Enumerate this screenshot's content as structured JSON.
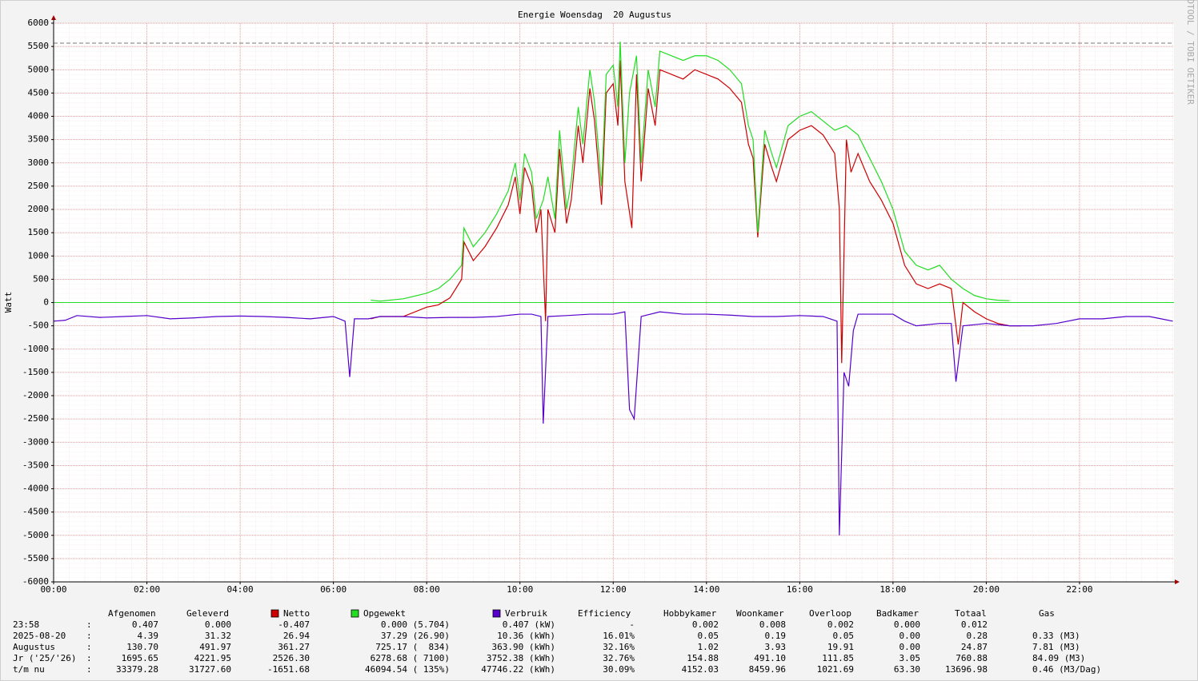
{
  "chart_data": {
    "type": "line",
    "title": "Energie Woensdag  20 Augustus",
    "y_label": "Watt",
    "watermark": "RRDTOOL / TOBI OETIKER",
    "xlim": [
      0,
      24
    ],
    "xticks": [
      {
        "value": 0,
        "label": "00:00"
      },
      {
        "value": 2,
        "label": "02:00"
      },
      {
        "value": 4,
        "label": "04:00"
      },
      {
        "value": 6,
        "label": "06:00"
      },
      {
        "value": 8,
        "label": "08:00"
      },
      {
        "value": 10,
        "label": "10:00"
      },
      {
        "value": 12,
        "label": "12:00"
      },
      {
        "value": 14,
        "label": "14:00"
      },
      {
        "value": 16,
        "label": "16:00"
      },
      {
        "value": 18,
        "label": "18:00"
      },
      {
        "value": 20,
        "label": "20:00"
      },
      {
        "value": 22,
        "label": "22:00"
      }
    ],
    "ylim": [
      -6000,
      6000
    ],
    "yticks": [
      -6000,
      -5500,
      -5000,
      -4500,
      -4000,
      -3500,
      -3000,
      -2500,
      -2000,
      -1500,
      -1000,
      -500,
      0,
      500,
      1000,
      1500,
      2000,
      2500,
      3000,
      3500,
      4000,
      4500,
      5000,
      5500,
      6000
    ],
    "grid": true,
    "max_line": 5570,
    "series": [
      {
        "name": "Netto",
        "color": "#cc0000",
        "x": [
          6.8,
          7.0,
          7.5,
          8.0,
          8.25,
          8.5,
          8.75,
          8.8,
          9.0,
          9.25,
          9.5,
          9.75,
          9.9,
          10.0,
          10.1,
          10.25,
          10.35,
          10.45,
          10.55,
          10.6,
          10.75,
          10.85,
          11.0,
          11.1,
          11.25,
          11.35,
          11.5,
          11.6,
          11.75,
          11.85,
          12.0,
          12.1,
          12.15,
          12.25,
          12.4,
          12.5,
          12.6,
          12.75,
          12.9,
          13.0,
          13.25,
          13.5,
          13.75,
          14.0,
          14.25,
          14.5,
          14.75,
          14.9,
          15.0,
          15.1,
          15.25,
          15.4,
          15.5,
          15.75,
          16.0,
          16.25,
          16.5,
          16.75,
          16.85,
          16.9,
          17.0,
          17.1,
          17.25,
          17.5,
          17.75,
          18.0,
          18.25,
          18.5,
          18.75,
          19.0,
          19.25,
          19.4,
          19.5,
          19.75,
          20.0,
          20.25,
          20.5,
          20.75
        ],
        "values": [
          -350,
          -300,
          -300,
          -100,
          -50,
          100,
          500,
          1300,
          900,
          1200,
          1600,
          2100,
          2700,
          1900,
          2900,
          2500,
          1500,
          2000,
          -400,
          2000,
          1500,
          3300,
          1700,
          2200,
          3800,
          3000,
          4600,
          3900,
          2100,
          4500,
          4700,
          3800,
          5200,
          2600,
          1600,
          4900,
          2600,
          4600,
          3800,
          5000,
          4900,
          4800,
          5000,
          4900,
          4800,
          4600,
          4300,
          3400,
          3100,
          1400,
          3400,
          2900,
          2600,
          3500,
          3700,
          3800,
          3600,
          3200,
          2000,
          -1300,
          3500,
          2800,
          3200,
          2600,
          2200,
          1700,
          800,
          400,
          300,
          400,
          300,
          -900,
          0,
          -200,
          -350,
          -450,
          -500,
          -500
        ]
      },
      {
        "name": "Opgewekt",
        "color": "#22dd22",
        "x": [
          6.8,
          7.0,
          7.5,
          8.0,
          8.25,
          8.5,
          8.75,
          8.8,
          9.0,
          9.25,
          9.5,
          9.75,
          9.9,
          10.0,
          10.1,
          10.25,
          10.35,
          10.5,
          10.6,
          10.75,
          10.85,
          11.0,
          11.1,
          11.25,
          11.35,
          11.5,
          11.6,
          11.75,
          11.85,
          12.0,
          12.1,
          12.15,
          12.25,
          12.35,
          12.5,
          12.6,
          12.75,
          12.9,
          13.0,
          13.25,
          13.5,
          13.75,
          14.0,
          14.25,
          14.5,
          14.75,
          14.9,
          15.0,
          15.1,
          15.25,
          15.4,
          15.5,
          15.75,
          16.0,
          16.25,
          16.5,
          16.75,
          17.0,
          17.25,
          17.5,
          17.75,
          18.0,
          18.25,
          18.5,
          18.75,
          19.0,
          19.25,
          19.5,
          19.75,
          20.0,
          20.25,
          20.5
        ],
        "values": [
          50,
          30,
          80,
          200,
          300,
          500,
          800,
          1600,
          1200,
          1500,
          1900,
          2400,
          3000,
          2200,
          3200,
          2800,
          1800,
          2200,
          2700,
          1800,
          3700,
          2000,
          2600,
          4200,
          3400,
          5000,
          4300,
          2500,
          4900,
          5100,
          4200,
          5600,
          3000,
          4500,
          5300,
          3000,
          5000,
          4200,
          5400,
          5300,
          5200,
          5300,
          5300,
          5200,
          5000,
          4700,
          3800,
          3500,
          1500,
          3700,
          3200,
          2900,
          3800,
          4000,
          4100,
          3900,
          3700,
          3800,
          3600,
          3100,
          2600,
          2000,
          1100,
          800,
          700,
          800,
          500,
          300,
          150,
          80,
          50,
          40
        ]
      },
      {
        "name": "Verbruik",
        "color": "#5500cc",
        "x": [
          0,
          0.25,
          0.5,
          1,
          1.5,
          2,
          2.5,
          3,
          3.5,
          4,
          4.5,
          5,
          5.5,
          6,
          6.25,
          6.35,
          6.45,
          6.75,
          7,
          7.5,
          8,
          8.5,
          9,
          9.5,
          10,
          10.25,
          10.45,
          10.5,
          10.6,
          11,
          11.5,
          12,
          12.25,
          12.35,
          12.45,
          12.6,
          13,
          13.5,
          14,
          14.5,
          15,
          15.5,
          16,
          16.5,
          16.8,
          16.85,
          16.95,
          17.05,
          17.15,
          17.25,
          17.5,
          18,
          18.25,
          18.5,
          19,
          19.25,
          19.35,
          19.5,
          20,
          20.5,
          21,
          21.5,
          22,
          22.5,
          23,
          23.5,
          23.75,
          24
        ],
        "values": [
          -400,
          -380,
          -280,
          -320,
          -300,
          -280,
          -350,
          -330,
          -300,
          -290,
          -300,
          -320,
          -350,
          -300,
          -400,
          -1600,
          -350,
          -350,
          -300,
          -300,
          -330,
          -320,
          -320,
          -300,
          -250,
          -250,
          -300,
          -2600,
          -300,
          -280,
          -250,
          -250,
          -200,
          -2300,
          -2500,
          -300,
          -200,
          -250,
          -250,
          -270,
          -300,
          -300,
          -280,
          -300,
          -400,
          -5000,
          -1500,
          -1800,
          -600,
          -250,
          -250,
          -250,
          -400,
          -500,
          -450,
          -450,
          -1700,
          -500,
          -450,
          -500,
          -500,
          -450,
          -350,
          -350,
          -300,
          -300,
          -350,
          -400
        ]
      }
    ]
  },
  "table": {
    "columns": [
      "Afgenomen",
      "Geleverd",
      "Netto",
      "Opgewekt",
      "Verbruik",
      "Efficiency",
      "Hobbykamer",
      "Woonkamer",
      "Overloop",
      "Badkamer",
      "Totaal",
      "Gas"
    ],
    "separator": ":",
    "rows": [
      [
        "23:58",
        "0.407",
        "0.000",
        "-0.407",
        "0.000 (5.704)",
        "0.407 (kW)",
        "-",
        "0.002",
        "0.008",
        "0.002",
        "0.000",
        "0.012"
      ],
      [
        "2025-08-20",
        "4.39",
        "31.32",
        "26.94",
        "37.29 (26.90)",
        "10.36 (kWh)",
        "16.01%",
        "0.05",
        "0.19",
        "0.05",
        "0.00",
        "0.28",
        "0.33 (M3)"
      ],
      [
        "Augustus",
        "130.70",
        "491.97",
        "361.27",
        "725.17 (  834)",
        "363.90 (kWh)",
        "32.16%",
        "1.02",
        "3.93",
        "19.91",
        "0.00",
        "24.87",
        "7.81 (M3)"
      ],
      [
        "Jr ('25/'26)",
        "1695.65",
        "4221.95",
        "2526.30",
        "6278.68 ( 7100)",
        "3752.38 (kWh)",
        "32.76%",
        "154.88",
        "491.10",
        "111.85",
        "3.05",
        "760.88",
        "84.09 (M3)"
      ],
      [
        "t/m nu",
        "33379.28",
        "31727.60",
        "-1651.68",
        "46094.54 ( 135%)",
        "47746.22 (kWh)",
        "30.09%",
        "4152.03",
        "8459.96",
        "1021.69",
        "63.30",
        "13696.98",
        "0.46 (M3/Dag)"
      ]
    ]
  }
}
